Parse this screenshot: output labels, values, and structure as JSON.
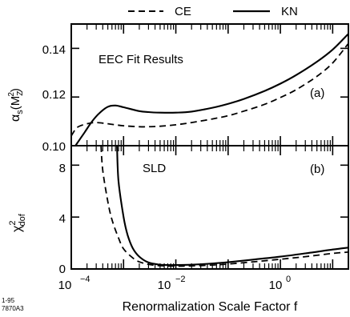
{
  "legend": [
    {
      "label": "CE",
      "dash": "dashed"
    },
    {
      "label": "KN",
      "dash": "solid"
    }
  ],
  "figure_id": [
    "1-95",
    "7870A3"
  ],
  "chart_data": [
    {
      "type": "line",
      "panel_label": "(a)",
      "annotation": "EEC Fit Results",
      "ylabel_main": "α",
      "ylabel_sub": "s",
      "ylabel_tail": "(M",
      "ylabel_tail_sub": "Z",
      "ylabel_tail_sup": "2",
      "ylabel_end": ")",
      "x_scale": "log",
      "xlim": [
        0.0001,
        20
      ],
      "ylim": [
        0.1,
        0.15
      ],
      "yticks": [
        0.1,
        0.12,
        0.14
      ],
      "ytick_labels": [
        "0.10",
        "0.12",
        "0.14"
      ],
      "series": [
        {
          "name": "CE",
          "style": "dashed",
          "x": [
            0.0001,
            0.00013,
            0.0002,
            0.0003,
            0.0005,
            0.001,
            0.002,
            0.003,
            0.005,
            0.01,
            0.02,
            0.05,
            0.1,
            0.2,
            0.5,
            1,
            2,
            5,
            10,
            20
          ],
          "y": [
            0.104,
            0.1075,
            0.109,
            0.1095,
            0.109,
            0.1082,
            0.1078,
            0.1078,
            0.108,
            0.1086,
            0.1095,
            0.111,
            0.1123,
            0.1142,
            0.117,
            0.1198,
            0.123,
            0.1285,
            0.134,
            0.142
          ]
        },
        {
          "name": "KN",
          "style": "solid",
          "x": [
            0.00012,
            0.00018,
            0.00025,
            0.00035,
            0.0005,
            0.0007,
            0.001,
            0.002,
            0.003,
            0.005,
            0.01,
            0.02,
            0.05,
            0.1,
            0.2,
            0.5,
            1,
            2,
            5,
            10,
            20
          ],
          "y": [
            0.1,
            0.1055,
            0.11,
            0.1135,
            0.116,
            0.1165,
            0.1158,
            0.1142,
            0.1138,
            0.1136,
            0.1136,
            0.114,
            0.1156,
            0.1172,
            0.1192,
            0.1225,
            0.1255,
            0.129,
            0.1345,
            0.1395,
            0.146
          ]
        }
      ]
    },
    {
      "type": "line",
      "panel_label": "(b)",
      "annotation": "SLD",
      "ylabel_main": "χ",
      "ylabel_sup": "2",
      "ylabel_sub": "dof",
      "xlabel": "Renormalization Scale Factor f",
      "x_scale": "log",
      "xlim": [
        0.0001,
        20
      ],
      "xticks": [
        0.0001,
        0.01,
        1
      ],
      "ylim": [
        0,
        9.5
      ],
      "yticks": [
        0,
        4,
        8
      ],
      "ytick_labels": [
        "0",
        "4",
        "8"
      ],
      "series": [
        {
          "name": "CE",
          "style": "dashed",
          "x": [
            0.00037,
            0.0004,
            0.0005,
            0.0006,
            0.0008,
            0.001,
            0.0015,
            0.002,
            0.003,
            0.005,
            0.01,
            0.02,
            0.05,
            0.1,
            0.3,
            1,
            3,
            10,
            20
          ],
          "y": [
            9.5,
            7.6,
            5.2,
            3.8,
            2.4,
            1.55,
            0.85,
            0.55,
            0.35,
            0.25,
            0.22,
            0.24,
            0.3,
            0.38,
            0.55,
            0.75,
            0.95,
            1.2,
            1.3
          ]
        },
        {
          "name": "KN",
          "style": "solid",
          "x": [
            0.00075,
            0.0008,
            0.001,
            0.0012,
            0.0015,
            0.002,
            0.003,
            0.005,
            0.007,
            0.01,
            0.02,
            0.05,
            0.1,
            0.3,
            1,
            3,
            10,
            20
          ],
          "y": [
            9.5,
            6.8,
            4.0,
            2.6,
            1.6,
            0.95,
            0.5,
            0.33,
            0.3,
            0.3,
            0.33,
            0.42,
            0.52,
            0.72,
            0.95,
            1.2,
            1.5,
            1.65
          ]
        }
      ]
    }
  ]
}
